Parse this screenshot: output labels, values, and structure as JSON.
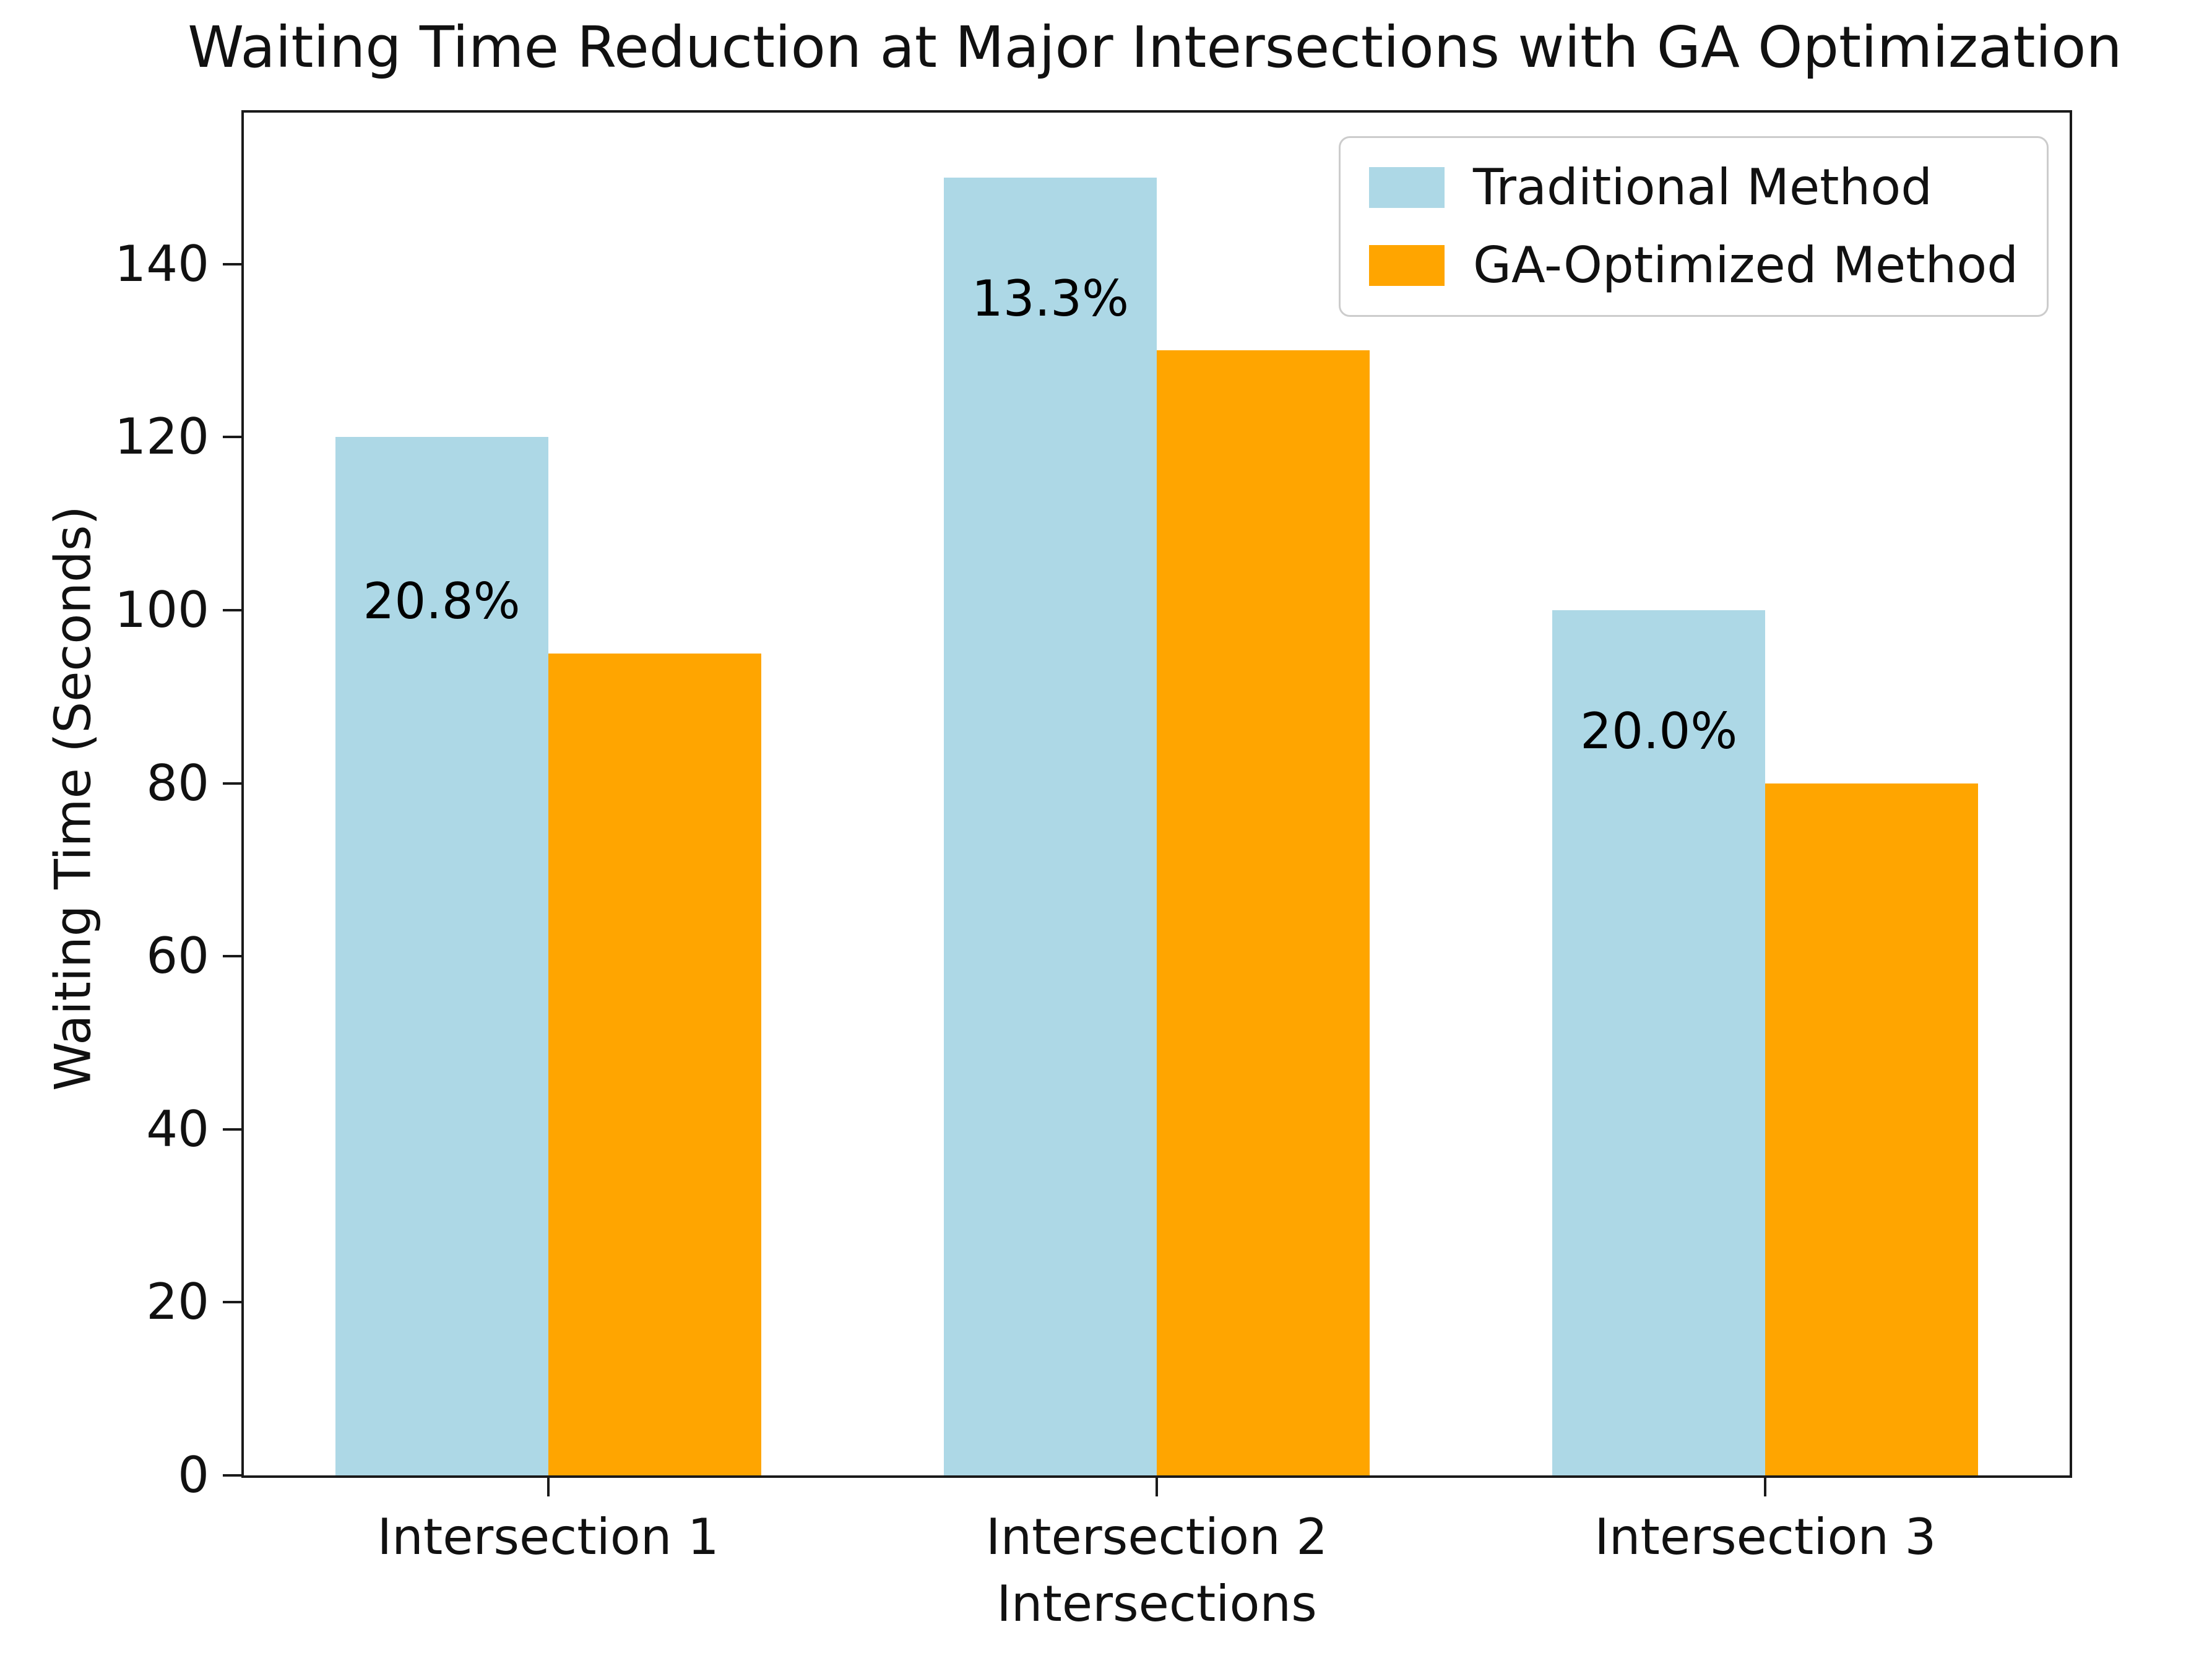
{
  "chart_data": {
    "type": "bar",
    "title": "Waiting Time Reduction at Major Intersections with GA Optimization",
    "xlabel": "Intersections",
    "ylabel": "Waiting Time (Seconds)",
    "categories": [
      "Intersection 1",
      "Intersection 2",
      "Intersection 3"
    ],
    "series": [
      {
        "name": "Traditional Method",
        "color": "#ADD8E6",
        "values": [
          120,
          150,
          100
        ]
      },
      {
        "name": "GA-Optimized Method",
        "color": "#FFA500",
        "values": [
          95,
          130,
          80
        ]
      }
    ],
    "annotations": [
      "20.8%",
      "13.3%",
      "20.0%"
    ],
    "yticks": [
      0,
      20,
      40,
      60,
      80,
      100,
      120,
      140
    ],
    "ylim": [
      0,
      157.5
    ],
    "bar_width": 0.35,
    "grid": false,
    "legend_position": "upper right"
  },
  "colors": {
    "spine": "#1a1a1a",
    "text": "#111111",
    "legend_border": "#cccccc",
    "background": "#ffffff"
  }
}
